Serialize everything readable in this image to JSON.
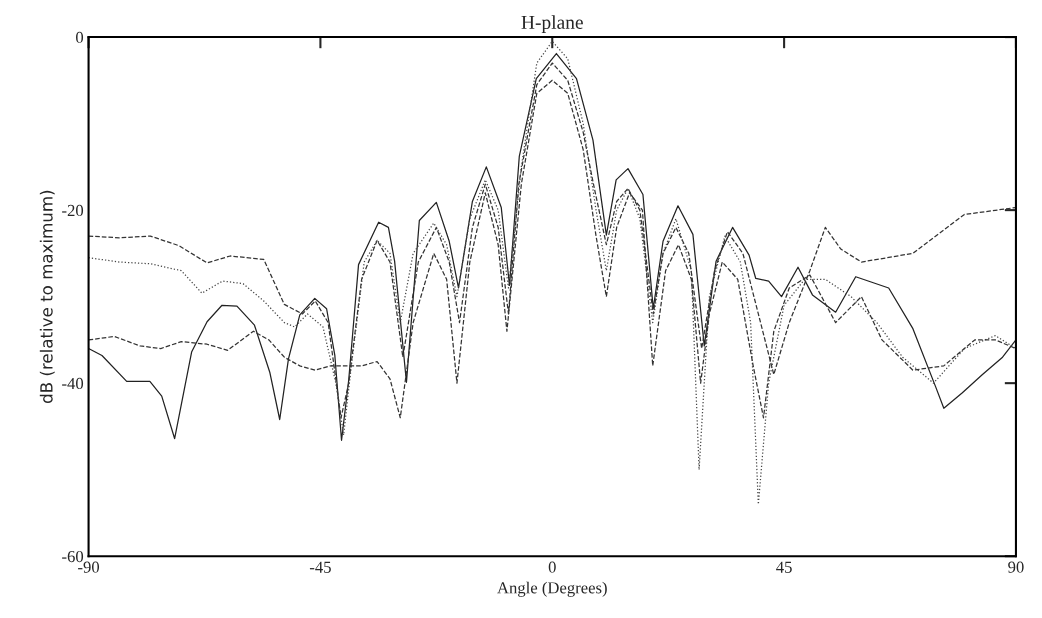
{
  "chart_data": {
    "type": "line",
    "title": "H-plane",
    "xlabel": "Angle (Degrees)",
    "ylabel": "dB (relative to maximum)",
    "xlim": [
      -90,
      90
    ],
    "ylim": [
      -60,
      0
    ],
    "xticks": [
      -90,
      -45,
      0,
      45,
      90
    ],
    "yticks": [
      -60,
      -40,
      -20,
      0
    ],
    "grid": false,
    "series": [
      {
        "color": "#222222",
        "line_style": "solid",
        "x": [
          -90,
          -87.4,
          -82.6,
          -78.1,
          -75.8,
          -73.3,
          -70,
          -67,
          -64.1,
          -61.2,
          -57.8,
          -54.8,
          -52.9,
          -51.2,
          -49,
          -46.1,
          -43.8,
          -42.2,
          -40.9,
          -39.5,
          -37.6,
          -33.7,
          -31.8,
          -30.6,
          -28.3,
          -25.8,
          -22.5,
          -20,
          -18.2,
          -15.5,
          -12.8,
          -9.9,
          -8.3,
          -6.4,
          -3.1,
          0.8,
          4.7,
          7.9,
          10.5,
          12.4,
          14.7,
          17.6,
          19.6,
          21.5,
          24.4,
          27.3,
          29.5,
          31.8,
          35,
          38.2,
          39.5,
          42,
          44.5,
          47.7,
          50.5,
          55,
          58.9,
          65.3,
          70,
          74.4,
          76,
          79.6,
          83.5,
          87.4,
          90
        ],
        "values": [
          -36,
          -36.8,
          -39.8,
          -39.8,
          -41.5,
          -46.4,
          -36.4,
          -32.9,
          -31,
          -31.1,
          -33.3,
          -38.8,
          -44.2,
          -37.2,
          -32.1,
          -30.2,
          -31.4,
          -36.8,
          -46.6,
          -39.6,
          -26.3,
          -21.4,
          -22,
          -25.9,
          -39.9,
          -21.2,
          -19.1,
          -23.6,
          -29,
          -19,
          -15,
          -19.7,
          -28.7,
          -13.8,
          -4.8,
          -1.9,
          -4.8,
          -11.9,
          -22.9,
          -16.5,
          -15.2,
          -18.2,
          -31.4,
          -23.6,
          -19.5,
          -22.8,
          -35.7,
          -25.9,
          -22,
          -25.2,
          -27.9,
          -28.2,
          -30,
          -26.6,
          -29.8,
          -31.8,
          -27.7,
          -29,
          -33.7,
          -40.4,
          -42.9,
          -41.1,
          -39,
          -37,
          -35
        ]
      },
      {
        "color": "#333333",
        "line_style": "dashed",
        "x": [
          -90,
          -84,
          -78,
          -72.5,
          -67,
          -62.5,
          -56,
          -52,
          -48.5,
          -46,
          -43.5,
          -41,
          -39.5,
          -37,
          -34,
          -31.5,
          -29,
          -26,
          -22.5,
          -20,
          -18,
          -15.5,
          -13,
          -10.5,
          -8.5,
          -6.5,
          -3,
          0,
          3,
          6,
          8,
          10.5,
          12.5,
          14.7,
          17,
          19.6,
          21.5,
          24,
          26.5,
          29,
          31.5,
          34,
          37,
          40,
          43,
          46,
          50,
          53,
          56,
          60,
          70,
          80,
          90
        ],
        "values": [
          -23,
          -23.2,
          -23,
          -24.1,
          -26.1,
          -25.3,
          -25.7,
          -30.9,
          -32,
          -30.5,
          -33,
          -44,
          -40,
          -28,
          -23.5,
          -26,
          -37,
          -26,
          -22,
          -26,
          -33,
          -22,
          -17,
          -22,
          -32,
          -17,
          -5.5,
          -3,
          -5,
          -11,
          -17,
          -24,
          -19,
          -17.5,
          -20,
          -32,
          -25,
          -22,
          -25,
          -36,
          -27,
          -22.5,
          -25,
          -32,
          -39,
          -33,
          -27,
          -22,
          -24.5,
          -26,
          -25,
          -20.5,
          -19.7
        ]
      },
      {
        "color": "#444444",
        "line_style": "dotted",
        "x": [
          -90,
          -84,
          -78,
          -72,
          -68,
          -64,
          -60,
          -56,
          -52,
          -50,
          -47.5,
          -44.5,
          -42,
          -40.5,
          -39,
          -36.5,
          -34,
          -31.5,
          -29.5,
          -27,
          -23,
          -20.5,
          -18.5,
          -16,
          -13,
          -10.5,
          -8.5,
          -6,
          -3,
          0,
          3,
          6,
          8.5,
          10.5,
          12.5,
          14.7,
          17,
          19.5,
          21.5,
          24,
          27,
          28.5,
          30.5,
          33.5,
          36.5,
          38.5,
          40,
          42,
          45,
          49,
          53,
          58,
          63,
          68,
          74,
          80,
          86,
          90
        ],
        "values": [
          -25.5,
          -26,
          -26.2,
          -27,
          -29.6,
          -28.2,
          -28.5,
          -30.5,
          -33,
          -33.5,
          -32,
          -33.5,
          -40,
          -46,
          -38,
          -26,
          -23.5,
          -25,
          -33,
          -25,
          -21.5,
          -24,
          -30,
          -21,
          -16.5,
          -20,
          -29,
          -15,
          -3,
          -0.5,
          -2.5,
          -10,
          -20,
          -27,
          -20,
          -17.5,
          -21,
          -33,
          -25,
          -21,
          -27,
          -50,
          -30,
          -23,
          -26,
          -33,
          -54,
          -40,
          -31,
          -28,
          -28,
          -30,
          -33,
          -37,
          -40,
          -36,
          -34.5,
          -36
        ]
      },
      {
        "color": "#333333",
        "line_style": "dashed",
        "x": [
          -90,
          -85,
          -80,
          -76,
          -72,
          -67,
          -63,
          -58,
          -55,
          -52,
          -49,
          -46,
          -43,
          -40,
          -37,
          -34,
          -31.5,
          -29.5,
          -27,
          -23,
          -20.5,
          -18.5,
          -16,
          -13,
          -10.5,
          -8.8,
          -6,
          -3,
          0,
          3,
          6,
          8.5,
          10.5,
          12.5,
          15,
          17.5,
          19.5,
          22,
          24.5,
          27,
          28.8,
          30.5,
          33,
          36,
          39,
          41,
          43,
          46,
          50,
          55,
          60,
          64,
          70,
          76,
          82,
          86,
          90
        ],
        "values": [
          -35,
          -34.6,
          -35.7,
          -36,
          -35.2,
          -35.5,
          -36.2,
          -34,
          -35,
          -37,
          -38,
          -38.5,
          -38,
          -38,
          -38,
          -37.5,
          -39.5,
          -44,
          -33,
          -25,
          -28,
          -40,
          -26,
          -18,
          -24,
          -34,
          -17,
          -6.5,
          -5,
          -6.5,
          -13,
          -23,
          -30,
          -22,
          -18,
          -20,
          -38,
          -27,
          -24,
          -28,
          -40,
          -32,
          -26,
          -28,
          -38,
          -44,
          -34,
          -29,
          -27.5,
          -33,
          -30,
          -35,
          -38.5,
          -38,
          -35,
          -35,
          -36
        ]
      }
    ]
  }
}
